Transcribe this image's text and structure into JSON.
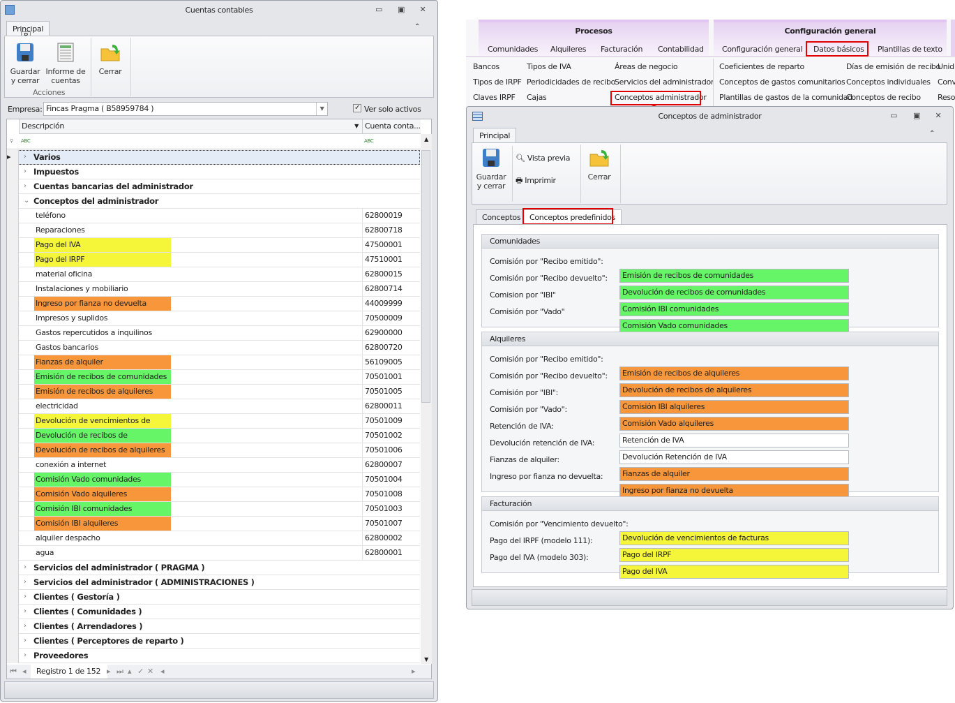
{
  "left_window": {
    "title": "Cuentas contables",
    "ribbon_tab": "Principal",
    "key_tip": "P",
    "buttons": {
      "save": "Guardar y cerrar",
      "report": "Informe de cuentas",
      "close": "Cerrar"
    },
    "group_label": "Acciones",
    "empresa_label": "Empresa:",
    "empresa_value": "Fincas Pragma ( B58959784 )",
    "ver_solo_activos": "Ver solo activos",
    "ver_solo_activos_checked": true,
    "columns": [
      "Descripción",
      "Cuenta conta..."
    ],
    "filter_icon": "abc-filter-icon",
    "groups_before": [
      "Varios",
      "Impuestos",
      "Cuentas bancarias del administrador"
    ],
    "expanded_group": "Conceptos del administrador",
    "rows": [
      {
        "desc": "teléfono",
        "cuenta": "62800019",
        "color": ""
      },
      {
        "desc": "Reparaciones",
        "cuenta": "62800718",
        "color": ""
      },
      {
        "desc": "Pago del IVA",
        "cuenta": "47500001",
        "color": "#f5f53a"
      },
      {
        "desc": "Pago del IRPF",
        "cuenta": "47510001",
        "color": "#f5f53a"
      },
      {
        "desc": "material oficina",
        "cuenta": "62800015",
        "color": ""
      },
      {
        "desc": "Instalaciones y mobiliario",
        "cuenta": "62800714",
        "color": ""
      },
      {
        "desc": "Ingreso por fianza no devuelta",
        "cuenta": "44009999",
        "color": "#f7963a"
      },
      {
        "desc": "Impresos y suplidos",
        "cuenta": "70500009",
        "color": ""
      },
      {
        "desc": "Gastos repercutidos a inquilinos",
        "cuenta": "62900000",
        "color": ""
      },
      {
        "desc": "Gastos bancarios",
        "cuenta": "62800720",
        "color": ""
      },
      {
        "desc": "Fianzas de alquiler",
        "cuenta": "56109005",
        "color": "#f7963a"
      },
      {
        "desc": "Emisión de recibos de comunidades",
        "cuenta": "70501001",
        "color": "#66f566"
      },
      {
        "desc": "Emisión de recibos de alquileres",
        "cuenta": "70501005",
        "color": "#f7963a"
      },
      {
        "desc": "electricidad",
        "cuenta": "62800011",
        "color": ""
      },
      {
        "desc": "Devolución de vencimientos de facturas",
        "cuenta": "70501009",
        "color": "#f5f53a"
      },
      {
        "desc": "Devolución de recibos de comunidades",
        "cuenta": "70501002",
        "color": "#66f566"
      },
      {
        "desc": "Devolución de recibos de alquileres",
        "cuenta": "70501006",
        "color": "#f7963a"
      },
      {
        "desc": "conexión a internet",
        "cuenta": "62800007",
        "color": ""
      },
      {
        "desc": "Comisión Vado comunidades",
        "cuenta": "70501004",
        "color": "#66f566"
      },
      {
        "desc": "Comisión Vado alquileres",
        "cuenta": "70501008",
        "color": "#f7963a"
      },
      {
        "desc": "Comisión IBI comunidades",
        "cuenta": "70501003",
        "color": "#66f566"
      },
      {
        "desc": "Comisión IBI alquileres",
        "cuenta": "70501007",
        "color": "#f7963a"
      },
      {
        "desc": "alquiler despacho",
        "cuenta": "62800002",
        "color": ""
      },
      {
        "desc": "agua",
        "cuenta": "62800001",
        "color": ""
      }
    ],
    "groups_after": [
      "Servicios del administrador ( PRAGMA )",
      "Servicios del administrador ( ADMINISTRACIONES )",
      "Clientes ( Gestoría )",
      "Clientes ( Comunidades )",
      "Clientes ( Arrendadores )",
      "Clientes ( Perceptores de reparto )",
      "Proveedores"
    ],
    "navigator": "Registro 1 de 152"
  },
  "main_ribbon": {
    "categories": [
      {
        "label": "Procesos"
      },
      {
        "label": "Configuración general"
      }
    ],
    "tabs": [
      "Comunidades",
      "Alquileres",
      "Facturación",
      "Contabilidad",
      "Configuración general",
      "Datos básicos",
      "Plantillas de texto"
    ],
    "items_col1": [
      "Bancos",
      "Tipos de IRPF",
      "Claves IRPF"
    ],
    "items_col2": [
      "Tipos de IVA",
      "Periodicidades de recibo",
      "Cajas"
    ],
    "items_col3": [
      "Áreas de negocio",
      "Servicios del administrador",
      "Conceptos administrador"
    ],
    "items_col4": [
      "Coeficientes de reparto",
      "Conceptos de gastos comunitarios",
      "Plantillas de gastos de la comunidad"
    ],
    "items_col5": [
      "Días de emisión de recibo",
      "Conceptos individuales",
      "Conceptos de recibo"
    ],
    "items_col6": [
      "Unid",
      "Conv",
      "Reso"
    ]
  },
  "child_window": {
    "title": "Conceptos de administrador",
    "ribbon_tab": "Principal",
    "buttons": {
      "save": "Guardar y cerrar",
      "preview": "Vista previa",
      "print": "Imprimir",
      "close": "Cerrar"
    },
    "tabs": [
      "Conceptos",
      "Conceptos predefinidos"
    ],
    "sections": [
      {
        "title": "Comunidades",
        "rows": [
          {
            "label": "Comisión por \"Recibo emitido\":",
            "value": "Emisión de recibos de comunidades",
            "color": "#66f566"
          },
          {
            "label": "Comisión por \"Recibo devuelto\":",
            "value": "Devolución de recibos de comunidades",
            "color": "#66f566"
          },
          {
            "label": "Comision por \"IBI\"",
            "value": "Comisión IBI comunidades",
            "color": "#66f566"
          },
          {
            "label": "Comisión por \"Vado\"",
            "value": "Comisión Vado comunidades",
            "color": "#66f566"
          }
        ]
      },
      {
        "title": "Alquileres",
        "rows": [
          {
            "label": "Comisión por \"Recibo emitido\":",
            "value": "Emisión de recibos de alquileres",
            "color": "#f7963a"
          },
          {
            "label": "Comisión por \"Recibo devuelto\":",
            "value": "Devolución de recibos de alquileres",
            "color": "#f7963a"
          },
          {
            "label": "Comisión por \"IBI\":",
            "value": "Comisión IBI alquileres",
            "color": "#f7963a"
          },
          {
            "label": "Comisión por \"Vado\":",
            "value": "Comisión Vado alquileres",
            "color": "#f7963a"
          },
          {
            "label": "Retención de IVA:",
            "value": "Retención de IVA",
            "color": "#ffffff"
          },
          {
            "label": "Devolución retención de IVA:",
            "value": "Devolución Retención de IVA",
            "color": "#ffffff"
          },
          {
            "label": "Fianzas de alquiler:",
            "value": "Fianzas de alquiler",
            "color": "#f7963a"
          },
          {
            "label": "Ingreso por fianza no devuelta:",
            "value": "Ingreso por fianza no devuelta",
            "color": "#f7963a"
          }
        ]
      },
      {
        "title": "Facturación",
        "rows": [
          {
            "label": "Comisión por \"Vencimiento devuelto\":",
            "value": "Devolución de vencimientos de facturas",
            "color": "#f5f53a"
          },
          {
            "label": "Pago del IRPF (modelo 111):",
            "value": "Pago del IRPF",
            "color": "#f5f53a"
          },
          {
            "label": "Pago del IVA (modelo 303):",
            "value": "Pago del IVA",
            "color": "#f5f53a"
          }
        ]
      }
    ]
  },
  "annotation_color": "#e00000"
}
